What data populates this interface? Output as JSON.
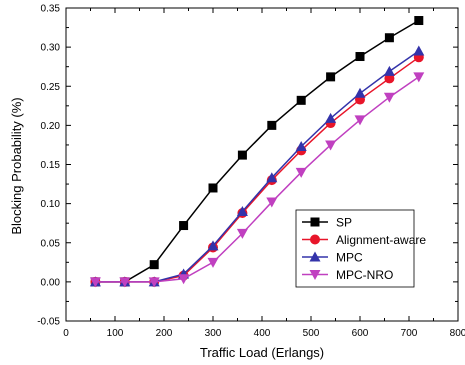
{
  "chart_data": {
    "type": "line",
    "title": "",
    "xlabel": "Traffic Load (Erlangs)",
    "ylabel": "Blocking Probability (%)",
    "xlim": [
      0,
      800
    ],
    "ylim": [
      -0.05,
      0.35
    ],
    "x_ticks": [
      "0",
      "100",
      "200",
      "300",
      "400",
      "500",
      "600",
      "700",
      "800"
    ],
    "y_ticks": [
      "-0.05",
      "0.00",
      "0.05",
      "0.10",
      "0.15",
      "0.20",
      "0.25",
      "0.30",
      "0.35"
    ],
    "grid": false,
    "legend_position": "lower-right",
    "x": [
      60,
      120,
      180,
      240,
      300,
      360,
      420,
      480,
      540,
      600,
      660,
      720
    ],
    "series": [
      {
        "name": "SP",
        "color": "#000000",
        "marker": "square",
        "values": [
          0.0,
          0.0,
          0.022,
          0.072,
          0.12,
          0.162,
          0.2,
          0.232,
          0.262,
          0.288,
          0.312,
          0.334
        ]
      },
      {
        "name": "Alignment-aware",
        "color": "#e8152a",
        "marker": "circle",
        "values": [
          0.0,
          0.0,
          0.0,
          0.008,
          0.044,
          0.088,
          0.13,
          0.168,
          0.203,
          0.233,
          0.26,
          0.287
        ]
      },
      {
        "name": "MPC",
        "color": "#3333aa",
        "marker": "triangle-up",
        "values": [
          0.0,
          0.0,
          0.0,
          0.01,
          0.046,
          0.09,
          0.133,
          0.173,
          0.209,
          0.241,
          0.269,
          0.295
        ]
      },
      {
        "name": "MPC-NRO",
        "color": "#c040c0",
        "marker": "triangle-down",
        "values": [
          0.0,
          0.0,
          0.0,
          0.004,
          0.025,
          0.062,
          0.102,
          0.14,
          0.175,
          0.207,
          0.236,
          0.262
        ]
      }
    ]
  }
}
